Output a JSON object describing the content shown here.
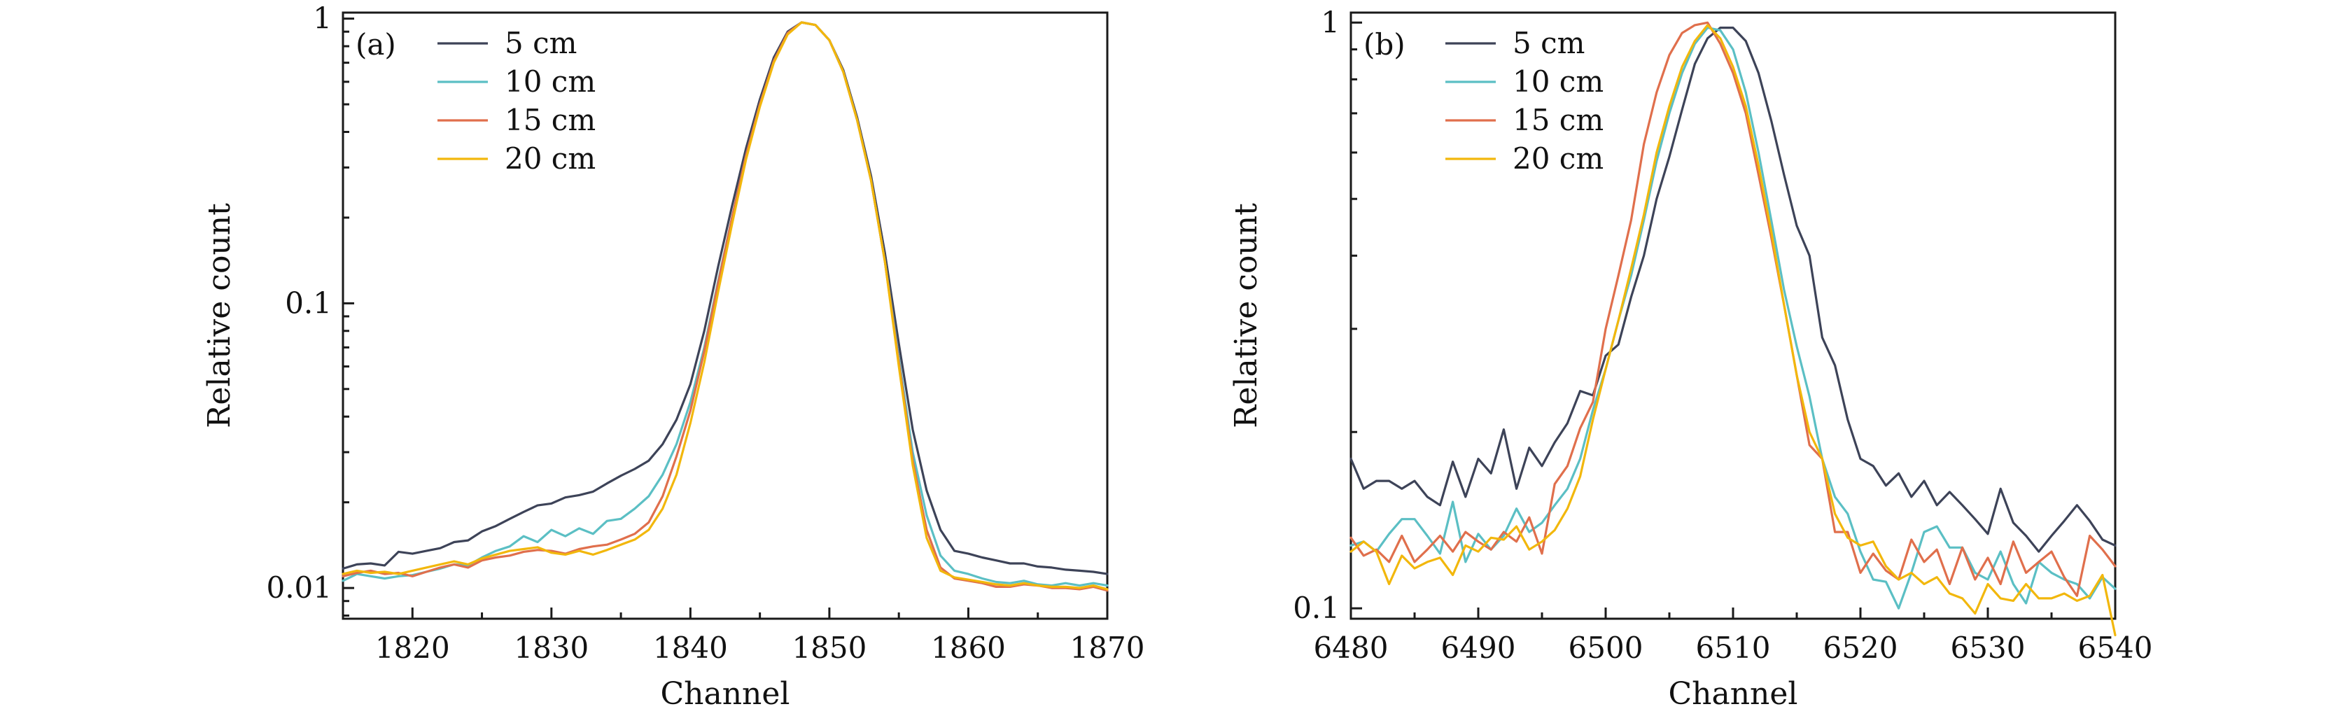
{
  "chart_data": [
    {
      "type": "line",
      "panel_label": "(a)",
      "xlabel": "Channel",
      "ylabel": "Relative count",
      "yscale": "log",
      "xlim": [
        1815,
        1870
      ],
      "ylim": [
        0.0078,
        1.05
      ],
      "x_ticks": [
        1820,
        1830,
        1840,
        1850,
        1860,
        1870
      ],
      "x_tick_labels": [
        "1820",
        "1830",
        "1840",
        "1850",
        "1860",
        "1870"
      ],
      "y_ticks": [
        0.01,
        0.1,
        1
      ],
      "y_tick_labels": [
        "0.01",
        "0.1",
        "1"
      ],
      "legend_position": "top-left",
      "x": [
        1815,
        1816,
        1817,
        1818,
        1819,
        1820,
        1821,
        1822,
        1823,
        1824,
        1825,
        1826,
        1827,
        1828,
        1829,
        1830,
        1831,
        1832,
        1833,
        1834,
        1835,
        1836,
        1837,
        1838,
        1839,
        1840,
        1841,
        1842,
        1843,
        1844,
        1845,
        1846,
        1847,
        1848,
        1849,
        1850,
        1851,
        1852,
        1853,
        1854,
        1855,
        1856,
        1857,
        1858,
        1859,
        1860,
        1861,
        1862,
        1863,
        1864,
        1865,
        1866,
        1867,
        1868,
        1869,
        1870
      ],
      "series": [
        {
          "name": "5 cm",
          "color": "#3d4358",
          "values": [
            0.0117,
            0.0121,
            0.0122,
            0.012,
            0.0134,
            0.0132,
            0.0135,
            0.0138,
            0.0145,
            0.0147,
            0.0158,
            0.0165,
            0.0175,
            0.0185,
            0.0195,
            0.0198,
            0.0208,
            0.0212,
            0.0218,
            0.0233,
            0.0248,
            0.0262,
            0.028,
            0.032,
            0.039,
            0.052,
            0.08,
            0.135,
            0.22,
            0.35,
            0.52,
            0.73,
            0.9,
            0.97,
            0.95,
            0.84,
            0.66,
            0.45,
            0.28,
            0.15,
            0.072,
            0.036,
            0.022,
            0.016,
            0.0135,
            0.0132,
            0.0128,
            0.0125,
            0.0122,
            0.0122,
            0.0119,
            0.0118,
            0.0116,
            0.0115,
            0.0114,
            0.0112
          ]
        },
        {
          "name": "10 cm",
          "color": "#5bbfc4",
          "values": [
            0.0106,
            0.0112,
            0.011,
            0.0108,
            0.011,
            0.0111,
            0.0114,
            0.0117,
            0.0121,
            0.012,
            0.0128,
            0.0135,
            0.014,
            0.0152,
            0.0145,
            0.016,
            0.0152,
            0.0162,
            0.0155,
            0.0172,
            0.0175,
            0.019,
            0.021,
            0.025,
            0.032,
            0.045,
            0.07,
            0.12,
            0.2,
            0.33,
            0.5,
            0.71,
            0.89,
            0.97,
            0.95,
            0.84,
            0.65,
            0.44,
            0.27,
            0.14,
            0.064,
            0.03,
            0.018,
            0.013,
            0.0115,
            0.0112,
            0.0108,
            0.0105,
            0.0104,
            0.0106,
            0.0103,
            0.0102,
            0.0104,
            0.0102,
            0.0104,
            0.0102
          ]
        },
        {
          "name": "15 cm",
          "color": "#e06f4c",
          "values": [
            0.011,
            0.0113,
            0.0115,
            0.0112,
            0.0113,
            0.011,
            0.0114,
            0.0118,
            0.0121,
            0.0118,
            0.0125,
            0.0128,
            0.013,
            0.0134,
            0.0136,
            0.0135,
            0.0132,
            0.0137,
            0.014,
            0.0142,
            0.0148,
            0.0155,
            0.017,
            0.021,
            0.029,
            0.042,
            0.068,
            0.118,
            0.2,
            0.33,
            0.5,
            0.71,
            0.89,
            0.97,
            0.95,
            0.84,
            0.65,
            0.44,
            0.27,
            0.14,
            0.062,
            0.028,
            0.016,
            0.0118,
            0.0108,
            0.0106,
            0.0104,
            0.0101,
            0.0101,
            0.0103,
            0.0102,
            0.01,
            0.01,
            0.0099,
            0.0101,
            0.0098
          ]
        },
        {
          "name": "20 cm",
          "color": "#f2b70c",
          "values": [
            0.0112,
            0.0115,
            0.0113,
            0.0114,
            0.0112,
            0.0115,
            0.0118,
            0.0121,
            0.0124,
            0.0121,
            0.0127,
            0.0131,
            0.0135,
            0.0137,
            0.0139,
            0.0133,
            0.0131,
            0.0135,
            0.0131,
            0.0136,
            0.0142,
            0.0148,
            0.016,
            0.019,
            0.025,
            0.038,
            0.062,
            0.11,
            0.19,
            0.32,
            0.49,
            0.7,
            0.88,
            0.97,
            0.95,
            0.84,
            0.65,
            0.44,
            0.27,
            0.14,
            0.06,
            0.027,
            0.015,
            0.0115,
            0.0109,
            0.0107,
            0.0105,
            0.0103,
            0.0102,
            0.0104,
            0.0102,
            0.0101,
            0.0101,
            0.01,
            0.0102,
            0.0099
          ]
        }
      ]
    },
    {
      "type": "line",
      "panel_label": "(b)",
      "xlabel": "Channel",
      "ylabel": "Relative count",
      "yscale": "log",
      "xlim": [
        6480,
        6540
      ],
      "ylim": [
        0.096,
        1.04
      ],
      "x_ticks": [
        6480,
        6490,
        6500,
        6510,
        6520,
        6530,
        6540
      ],
      "x_tick_labels": [
        "6480",
        "6490",
        "6500",
        "6510",
        "6520",
        "6530",
        "6540"
      ],
      "y_ticks": [
        0.1,
        1
      ],
      "y_tick_labels": [
        "0.1",
        "1"
      ],
      "legend_position": "top-left",
      "x": [
        6480,
        6481,
        6482,
        6483,
        6484,
        6485,
        6486,
        6487,
        6488,
        6489,
        6490,
        6491,
        6492,
        6493,
        6494,
        6495,
        6496,
        6497,
        6498,
        6499,
        6500,
        6501,
        6502,
        6503,
        6504,
        6505,
        6506,
        6507,
        6508,
        6509,
        6510,
        6511,
        6512,
        6513,
        6514,
        6515,
        6516,
        6517,
        6518,
        6519,
        6520,
        6521,
        6522,
        6523,
        6524,
        6525,
        6526,
        6527,
        6528,
        6529,
        6530,
        6531,
        6532,
        6533,
        6534,
        6535,
        6536,
        6537,
        6538,
        6539,
        6540
      ],
      "series": [
        {
          "name": "5 cm",
          "color": "#3d4358",
          "values": [
            0.18,
            0.16,
            0.165,
            0.165,
            0.16,
            0.165,
            0.155,
            0.15,
            0.178,
            0.155,
            0.18,
            0.17,
            0.202,
            0.16,
            0.188,
            0.175,
            0.192,
            0.207,
            0.235,
            0.231,
            0.27,
            0.282,
            0.34,
            0.4,
            0.5,
            0.59,
            0.71,
            0.85,
            0.94,
            0.98,
            0.98,
            0.93,
            0.82,
            0.68,
            0.55,
            0.45,
            0.4,
            0.29,
            0.26,
            0.21,
            0.18,
            0.175,
            0.162,
            0.17,
            0.155,
            0.165,
            0.15,
            0.158,
            0.15,
            0.142,
            0.134,
            0.16,
            0.14,
            0.133,
            0.125,
            0.133,
            0.141,
            0.15,
            0.141,
            0.131,
            0.128
          ]
        },
        {
          "name": "10 cm",
          "color": "#5bbfc4",
          "values": [
            0.128,
            0.13,
            0.125,
            0.134,
            0.142,
            0.142,
            0.133,
            0.124,
            0.152,
            0.12,
            0.134,
            0.126,
            0.133,
            0.148,
            0.135,
            0.14,
            0.15,
            0.16,
            0.18,
            0.218,
            0.256,
            0.31,
            0.37,
            0.46,
            0.58,
            0.7,
            0.82,
            0.92,
            0.98,
            0.97,
            0.9,
            0.76,
            0.6,
            0.46,
            0.35,
            0.28,
            0.23,
            0.18,
            0.155,
            0.145,
            0.125,
            0.112,
            0.111,
            0.1,
            0.115,
            0.135,
            0.138,
            0.127,
            0.127,
            0.115,
            0.112,
            0.125,
            0.11,
            0.102,
            0.12,
            0.115,
            0.112,
            0.11,
            0.104,
            0.113,
            0.108
          ]
        },
        {
          "name": "15 cm",
          "color": "#e06f4c",
          "values": [
            0.132,
            0.123,
            0.126,
            0.12,
            0.133,
            0.12,
            0.126,
            0.133,
            0.125,
            0.135,
            0.13,
            0.126,
            0.135,
            0.13,
            0.143,
            0.124,
            0.163,
            0.175,
            0.203,
            0.225,
            0.3,
            0.37,
            0.46,
            0.62,
            0.76,
            0.88,
            0.96,
            0.99,
            1.0,
            0.92,
            0.82,
            0.7,
            0.55,
            0.43,
            0.33,
            0.25,
            0.19,
            0.18,
            0.135,
            0.135,
            0.115,
            0.124,
            0.116,
            0.112,
            0.131,
            0.12,
            0.126,
            0.11,
            0.127,
            0.112,
            0.122,
            0.11,
            0.13,
            0.115,
            0.12,
            0.125,
            0.113,
            0.105,
            0.133,
            0.126,
            0.118
          ]
        },
        {
          "name": "20 cm",
          "color": "#f2b70c",
          "values": [
            0.125,
            0.13,
            0.125,
            0.11,
            0.123,
            0.117,
            0.12,
            0.122,
            0.114,
            0.128,
            0.125,
            0.132,
            0.131,
            0.138,
            0.126,
            0.13,
            0.136,
            0.148,
            0.168,
            0.21,
            0.256,
            0.31,
            0.38,
            0.47,
            0.6,
            0.72,
            0.84,
            0.93,
            0.99,
            0.94,
            0.84,
            0.72,
            0.57,
            0.44,
            0.33,
            0.25,
            0.2,
            0.18,
            0.145,
            0.132,
            0.128,
            0.13,
            0.118,
            0.112,
            0.115,
            0.11,
            0.113,
            0.106,
            0.104,
            0.098,
            0.11,
            0.104,
            0.103,
            0.11,
            0.104,
            0.104,
            0.106,
            0.103,
            0.105,
            0.114,
            0.09
          ]
        }
      ]
    }
  ]
}
